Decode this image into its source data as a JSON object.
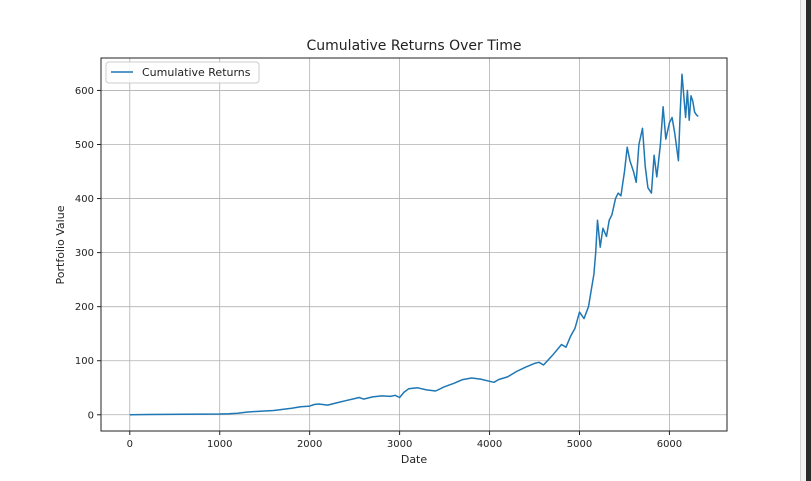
{
  "chart_data": {
    "type": "line",
    "title": "Cumulative Returns Over Time",
    "xlabel": "Date",
    "ylabel": "Portfolio Value",
    "xlim": [
      -320,
      6640
    ],
    "ylim": [
      -30,
      660
    ],
    "xticks": [
      0,
      1000,
      2000,
      3000,
      4000,
      5000,
      6000
    ],
    "yticks": [
      0,
      100,
      200,
      300,
      400,
      500,
      600
    ],
    "xtick_labels": [
      "0",
      "1000",
      "2000",
      "3000",
      "4000",
      "5000",
      "6000"
    ],
    "ytick_labels": [
      "0",
      "100",
      "200",
      "300",
      "400",
      "500",
      "600"
    ],
    "grid": true,
    "legend_position": "upper-left",
    "series": [
      {
        "name": "Cumulative Returns",
        "color": "#1f77b4",
        "x": [
          0,
          200,
          400,
          600,
          800,
          1000,
          1100,
          1200,
          1300,
          1400,
          1500,
          1600,
          1700,
          1800,
          1900,
          2000,
          2050,
          2100,
          2200,
          2300,
          2400,
          2500,
          2550,
          2600,
          2700,
          2800,
          2900,
          2950,
          3000,
          3050,
          3100,
          3200,
          3300,
          3400,
          3500,
          3600,
          3700,
          3800,
          3900,
          4000,
          4050,
          4100,
          4200,
          4300,
          4400,
          4500,
          4550,
          4600,
          4700,
          4800,
          4850,
          4900,
          4950,
          5000,
          5050,
          5100,
          5130,
          5160,
          5180,
          5200,
          5230,
          5260,
          5300,
          5330,
          5360,
          5400,
          5430,
          5460,
          5500,
          5530,
          5560,
          5600,
          5630,
          5660,
          5700,
          5730,
          5760,
          5800,
          5830,
          5860,
          5900,
          5930,
          5960,
          6000,
          6030,
          6060,
          6100,
          6120,
          6140,
          6160,
          6180,
          6200,
          6220,
          6240,
          6260,
          6280,
          6300,
          6320
        ],
        "values": [
          0,
          0.5,
          0.8,
          1.0,
          1.2,
          1.5,
          2,
          3,
          5,
          6,
          7,
          8,
          10,
          12,
          15,
          16,
          19,
          20,
          18,
          22,
          26,
          30,
          32,
          29,
          33,
          35,
          34,
          36,
          32,
          42,
          48,
          50,
          46,
          44,
          52,
          58,
          65,
          68,
          66,
          62,
          60,
          65,
          70,
          80,
          88,
          95,
          97,
          92,
          110,
          130,
          125,
          145,
          160,
          190,
          178,
          200,
          230,
          260,
          300,
          360,
          310,
          345,
          330,
          360,
          370,
          400,
          410,
          405,
          450,
          495,
          470,
          450,
          430,
          500,
          530,
          460,
          420,
          410,
          480,
          440,
          500,
          570,
          510,
          540,
          550,
          520,
          470,
          560,
          630,
          590,
          550,
          600,
          545,
          590,
          580,
          560,
          555,
          552
        ]
      }
    ]
  }
}
